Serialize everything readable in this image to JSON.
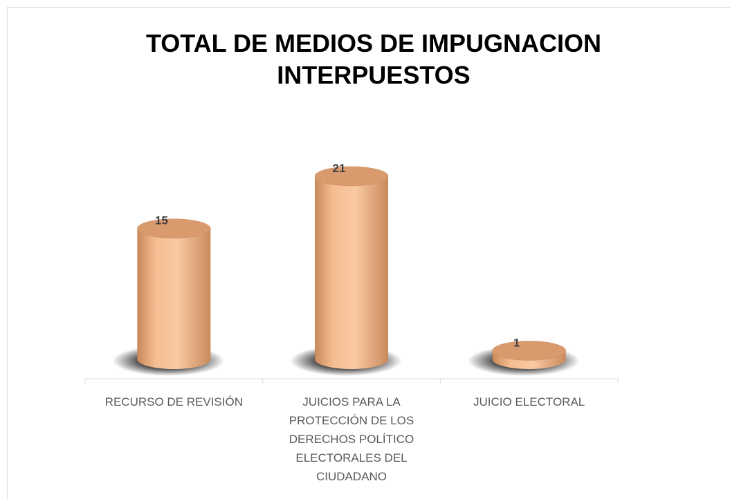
{
  "chart_data": {
    "type": "bar",
    "title": "TOTAL DE MEDIOS DE IMPUGNACION INTERPUESTOS",
    "categories": [
      "RECURSO DE REVISIÓN",
      "JUICIOS PARA LA PROTECCIÓN DE LOS DERECHOS POLÍTICO ELECTORALES DEL CIUDADANO",
      "JUICIO ELECTORAL"
    ],
    "values": [
      15,
      21,
      1
    ],
    "color": "#f4b183"
  }
}
